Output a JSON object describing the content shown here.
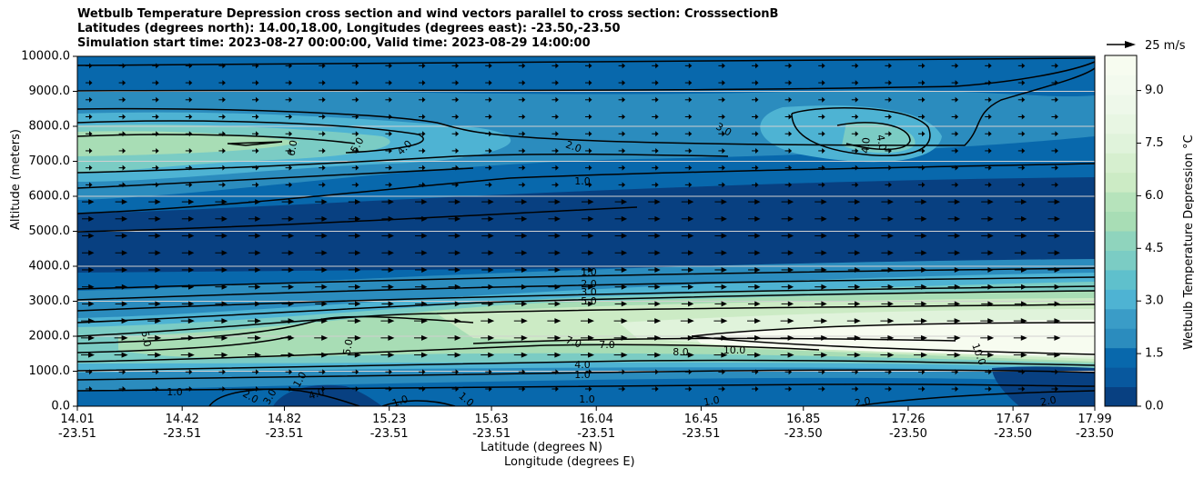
{
  "chart_data": {
    "type": "contour",
    "title_lines": [
      "Wetbulb Temperature Depression cross section and wind vectors parallel to cross section: CrosssectionB",
      "Latitudes (degrees north): 14.00,18.00, Longitudes (degrees east): -23.50,-23.50",
      "Simulation start time: 2023-08-27 00:00:00, Valid time: 2023-08-29 14:00:00"
    ],
    "ylabel": "Altitude (meters)",
    "xlabel_lat": "Latitude (degrees N)",
    "xlabel_lon": "Longitude (degrees E)",
    "ylim": [
      0,
      10000
    ],
    "yticks": [
      "0.0",
      "1000.0",
      "2000.0",
      "3000.0",
      "4000.0",
      "5000.0",
      "6000.0",
      "7000.0",
      "8000.0",
      "9000.0",
      "10000.0"
    ],
    "xticks_lat": [
      "14.01",
      "14.42",
      "14.82",
      "15.23",
      "15.63",
      "16.04",
      "16.45",
      "16.85",
      "17.26",
      "17.67",
      "17.99"
    ],
    "xticks_lon": [
      "-23.51",
      "-23.51",
      "-23.51",
      "-23.51",
      "-23.51",
      "-23.51",
      "-23.51",
      "-23.50",
      "-23.50",
      "-23.50",
      "-23.50"
    ],
    "colorbar": {
      "label": "Wetbulb Temperature Depression °C",
      "range": [
        0,
        10
      ],
      "ticks": [
        "0.0",
        "1.5",
        "3.0",
        "4.5",
        "6.0",
        "7.5",
        "9.0"
      ]
    },
    "wind_key": "25 m/s",
    "contour_labels": [
      "1.0",
      "2.0",
      "3.0",
      "4.0",
      "5.0",
      "6.0",
      "7.0",
      "8.0",
      "10.0"
    ],
    "colormap": [
      "#084081",
      "#0868ac",
      "#2b8cbe",
      "#4eb3d3",
      "#7bccc4",
      "#a8ddb5",
      "#ccebc5",
      "#e0f3db",
      "#f7fcf0"
    ]
  }
}
